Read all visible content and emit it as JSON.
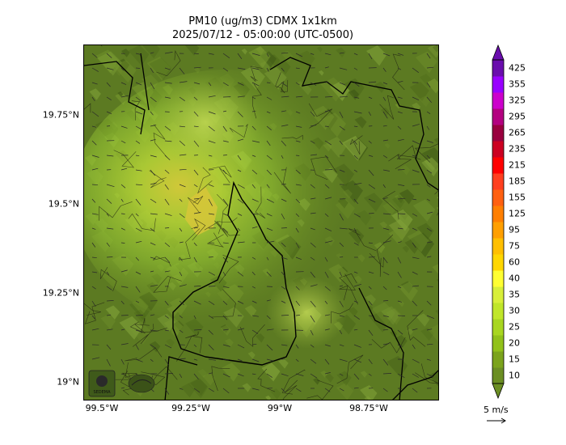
{
  "title": {
    "line1": "PM10 (ug/m3) CDMX 1x1km",
    "line2": "2025/07/12 - 05:00:00 (UTC-0500)"
  },
  "axes": {
    "lat_ticks": [
      "19.75°N",
      "19.5°N",
      "19.25°N",
      "19°N"
    ],
    "lon_ticks": [
      "99.5°W",
      "99.25°W",
      "99°W",
      "98.75°W"
    ]
  },
  "colorbar": {
    "levels": [
      "10",
      "15",
      "20",
      "25",
      "30",
      "35",
      "40",
      "60",
      "75",
      "95",
      "125",
      "155",
      "185",
      "215",
      "235",
      "265",
      "295",
      "325",
      "355",
      "425"
    ],
    "colors": [
      "#6b8e23",
      "#7ba31c",
      "#91c11a",
      "#a8d620",
      "#c0e62a",
      "#d8ef3a",
      "#ffff33",
      "#ffd700",
      "#ffbf00",
      "#ff9f00",
      "#ff7f00",
      "#ff6010",
      "#ff3f1f",
      "#ff0000",
      "#cc0022",
      "#99003f",
      "#b30080",
      "#cc00cc",
      "#9900ff",
      "#6a0dad"
    ]
  },
  "wind_legend": {
    "label": "5 m/s"
  }
}
